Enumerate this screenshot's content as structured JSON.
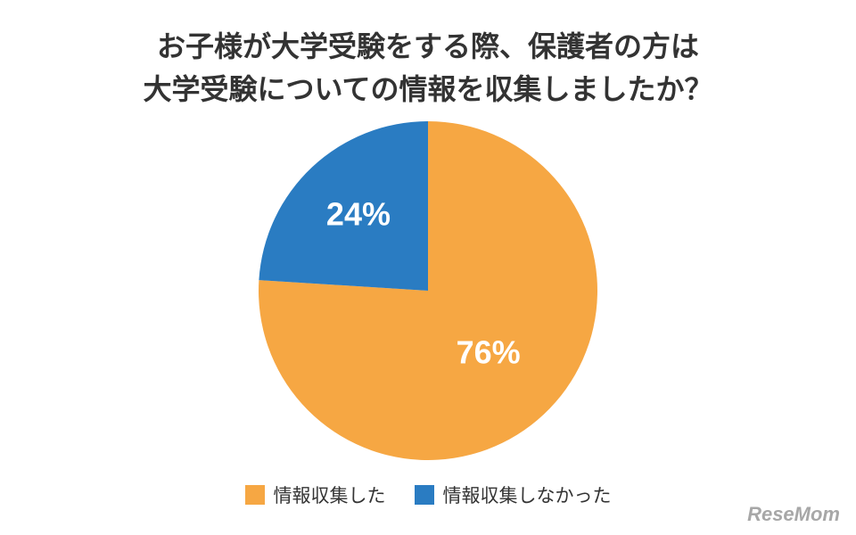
{
  "chart_data": {
    "type": "pie",
    "title": [
      "お子様が大学受験をする際、保護者の方は",
      "大学受験についての情報を収集しましたか？"
    ],
    "slices": [
      {
        "name": "情報収集した",
        "value": 76,
        "label": "76%",
        "color": "#F6A743"
      },
      {
        "name": "情報収集しなかった",
        "value": 24,
        "label": "24%",
        "color": "#2A7CC2"
      }
    ],
    "start": "12 o'clock",
    "direction": "clockwise",
    "legend_position": "bottom"
  },
  "watermark": "ReseMom"
}
